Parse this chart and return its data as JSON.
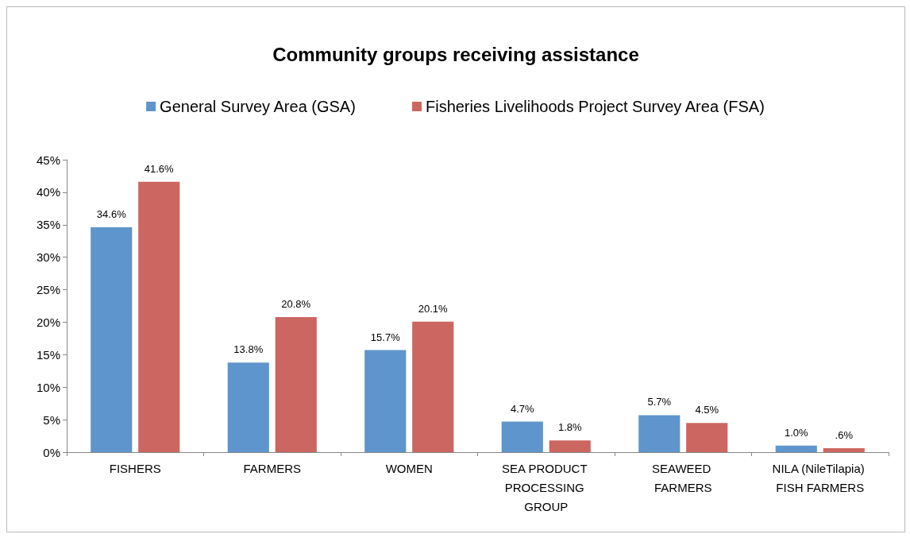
{
  "chart_data": {
    "type": "bar",
    "title": "Community groups receiving assistance",
    "categories": [
      "FISHERS",
      "FARMERS",
      "WOMEN",
      "SEA PRODUCT PROCESSING GROUP",
      "SEAWEED FARMERS",
      "NILA (NileTilapia) FISH FARMERS"
    ],
    "series": [
      {
        "name": "General Survey Area (GSA)",
        "color": "#5e95cc",
        "values": [
          34.6,
          13.8,
          15.7,
          4.7,
          5.7,
          1.0
        ],
        "value_labels": [
          "34.6%",
          "13.8%",
          "15.7%",
          "4.7%",
          "5.7%",
          "1.0%"
        ]
      },
      {
        "name": "Fisheries Livelihoods Project Survey Area (FSA)",
        "color": "#cc6660",
        "values": [
          41.6,
          20.8,
          20.1,
          1.8,
          4.5,
          0.6
        ],
        "value_labels": [
          "41.6%",
          "20.8%",
          "20.1%",
          "1.8%",
          "4.5%",
          ".6%"
        ]
      }
    ],
    "ylim": [
      0,
      45
    ],
    "yticks": [
      {
        "value": 0,
        "label": "0%"
      },
      {
        "value": 5,
        "label": "5%"
      },
      {
        "value": 10,
        "label": "10%"
      },
      {
        "value": 15,
        "label": "15%"
      },
      {
        "value": 20,
        "label": "20%"
      },
      {
        "value": 25,
        "label": "25%"
      },
      {
        "value": 30,
        "label": "30%"
      },
      {
        "value": 35,
        "label": "35%"
      },
      {
        "value": 40,
        "label": "40%"
      },
      {
        "value": 45,
        "label": "45%"
      }
    ],
    "grid": false,
    "legend": "top"
  }
}
